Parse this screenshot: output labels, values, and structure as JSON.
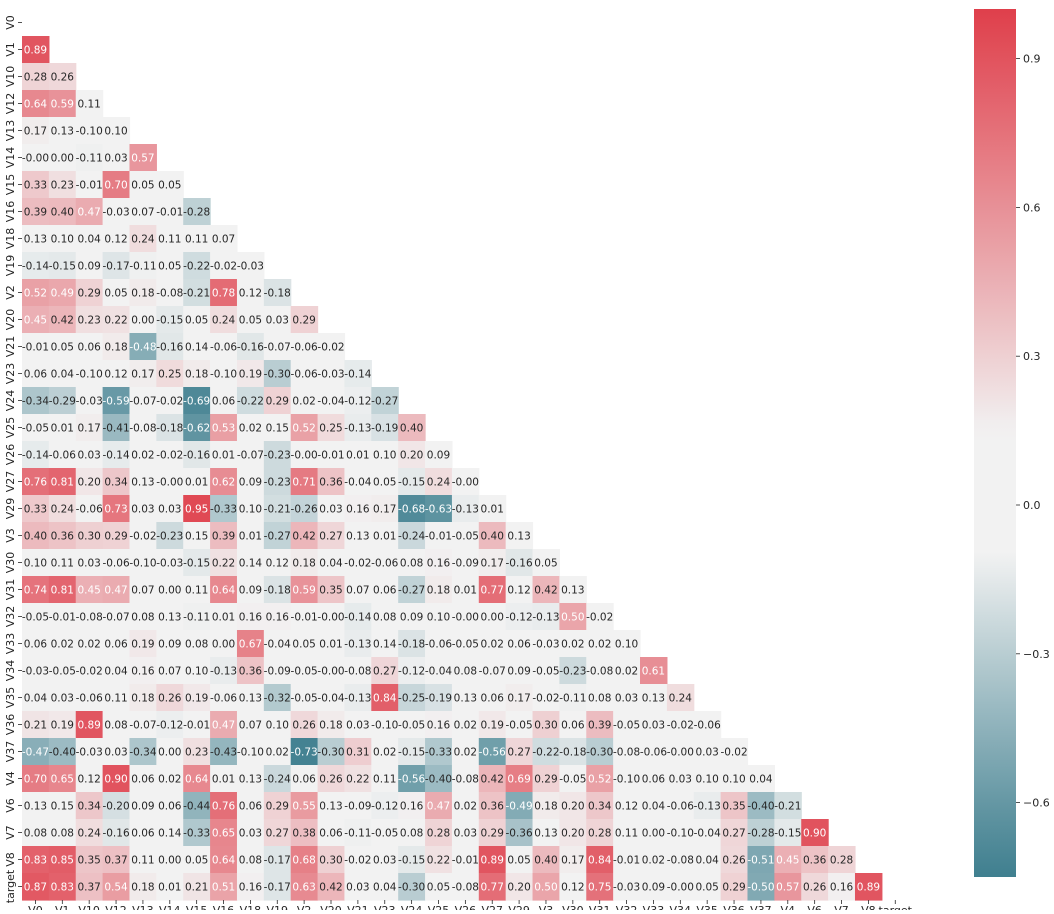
{
  "chart_data": {
    "type": "heatmap",
    "title": "",
    "xlabel": "",
    "ylabel": "",
    "labels": [
      "V0",
      "V1",
      "V10",
      "V12",
      "V13",
      "V14",
      "V15",
      "V16",
      "V18",
      "V19",
      "V2",
      "V20",
      "V21",
      "V23",
      "V24",
      "V25",
      "V26",
      "V27",
      "V29",
      "V3",
      "V30",
      "V31",
      "V32",
      "V33",
      "V34",
      "V35",
      "V36",
      "V37",
      "V4",
      "V6",
      "V7",
      "V8",
      "target"
    ],
    "rows": [
      [],
      [
        "0.89"
      ],
      [
        "0.28",
        "0.26"
      ],
      [
        "0.64",
        "0.59",
        "0.11"
      ],
      [
        "0.17",
        "0.13",
        "-0.10",
        "0.10"
      ],
      [
        "-0.00",
        "0.00",
        "-0.11",
        "0.03",
        "0.57"
      ],
      [
        "0.33",
        "0.23",
        "-0.01",
        "0.70",
        "0.05",
        "0.05"
      ],
      [
        "0.39",
        "0.40",
        "0.47",
        "-0.03",
        "0.07",
        "-0.01",
        "-0.28"
      ],
      [
        "0.13",
        "0.10",
        "0.04",
        "0.12",
        "0.24",
        "0.11",
        "0.11",
        "0.07"
      ],
      [
        "-0.14",
        "-0.15",
        "0.09",
        "-0.17",
        "-0.11",
        "0.05",
        "-0.22",
        "-0.02",
        "-0.03"
      ],
      [
        "0.52",
        "0.49",
        "0.29",
        "0.05",
        "0.18",
        "-0.08",
        "-0.21",
        "0.78",
        "0.12",
        "-0.18"
      ],
      [
        "0.45",
        "0.42",
        "0.23",
        "0.22",
        "0.00",
        "-0.15",
        "0.05",
        "0.24",
        "0.05",
        "0.03",
        "0.29"
      ],
      [
        "-0.01",
        "0.05",
        "0.06",
        "0.18",
        "-0.48",
        "-0.16",
        "0.14",
        "-0.06",
        "-0.16",
        "-0.07",
        "-0.06",
        "-0.02"
      ],
      [
        "0.06",
        "0.04",
        "-0.10",
        "0.12",
        "0.17",
        "0.25",
        "0.18",
        "-0.10",
        "0.19",
        "-0.30",
        "-0.06",
        "-0.03",
        "-0.14"
      ],
      [
        "-0.34",
        "-0.29",
        "-0.03",
        "-0.59",
        "-0.07",
        "-0.02",
        "-0.69",
        "0.06",
        "-0.22",
        "0.29",
        "0.02",
        "-0.04",
        "-0.12",
        "-0.27"
      ],
      [
        "-0.05",
        "0.01",
        "0.17",
        "-0.41",
        "-0.08",
        "-0.18",
        "-0.62",
        "0.53",
        "0.02",
        "0.15",
        "0.52",
        "0.25",
        "-0.13",
        "-0.19",
        "0.40"
      ],
      [
        "-0.14",
        "-0.06",
        "0.03",
        "-0.14",
        "0.02",
        "-0.02",
        "-0.16",
        "0.01",
        "-0.07",
        "-0.23",
        "-0.00",
        "-0.01",
        "0.01",
        "0.10",
        "0.20",
        "0.09"
      ],
      [
        "0.76",
        "0.81",
        "0.20",
        "0.34",
        "0.13",
        "-0.00",
        "0.01",
        "0.62",
        "0.09",
        "-0.23",
        "0.71",
        "0.36",
        "-0.04",
        "0.05",
        "-0.15",
        "0.24",
        "-0.00"
      ],
      [
        "0.33",
        "0.24",
        "-0.06",
        "0.73",
        "0.03",
        "0.03",
        "0.95",
        "-0.33",
        "0.10",
        "-0.21",
        "-0.26",
        "0.03",
        "0.16",
        "0.17",
        "-0.68",
        "-0.63",
        "-0.13",
        "0.01"
      ],
      [
        "0.40",
        "0.36",
        "0.30",
        "0.29",
        "-0.02",
        "-0.23",
        "0.15",
        "0.39",
        "0.01",
        "-0.27",
        "0.42",
        "0.27",
        "0.13",
        "0.01",
        "-0.24",
        "-0.01",
        "-0.05",
        "0.40",
        "0.13"
      ],
      [
        "0.10",
        "0.11",
        "0.03",
        "-0.06",
        "-0.10",
        "-0.03",
        "-0.15",
        "0.22",
        "0.14",
        "0.12",
        "0.18",
        "0.04",
        "-0.02",
        "-0.06",
        "0.08",
        "0.16",
        "-0.09",
        "0.17",
        "-0.16",
        "0.05"
      ],
      [
        "0.74",
        "0.81",
        "0.45",
        "0.47",
        "0.07",
        "0.00",
        "0.11",
        "0.64",
        "0.09",
        "-0.18",
        "0.59",
        "0.35",
        "0.07",
        "0.06",
        "-0.27",
        "0.18",
        "0.01",
        "0.77",
        "0.12",
        "0.42",
        "0.13"
      ],
      [
        "-0.05",
        "-0.01",
        "-0.08",
        "-0.07",
        "0.08",
        "0.13",
        "-0.11",
        "0.01",
        "0.16",
        "0.16",
        "-0.01",
        "-0.00",
        "-0.14",
        "0.08",
        "0.09",
        "0.10",
        "-0.00",
        "0.00",
        "-0.12",
        "-0.13",
        "0.50",
        "-0.02"
      ],
      [
        "0.06",
        "0.02",
        "0.02",
        "0.06",
        "0.19",
        "0.09",
        "0.08",
        "0.00",
        "0.67",
        "-0.04",
        "0.05",
        "0.01",
        "-0.13",
        "0.14",
        "-0.18",
        "-0.06",
        "-0.05",
        "0.02",
        "0.06",
        "-0.03",
        "0.02",
        "0.02",
        "0.10"
      ],
      [
        "-0.03",
        "-0.05",
        "-0.02",
        "0.04",
        "0.16",
        "0.07",
        "0.10",
        "-0.13",
        "0.36",
        "-0.09",
        "-0.05",
        "-0.00",
        "-0.08",
        "0.27",
        "-0.12",
        "-0.04",
        "0.08",
        "-0.07",
        "0.09",
        "-0.05",
        "-0.23",
        "-0.08",
        "0.02",
        "0.61"
      ],
      [
        "0.04",
        "0.03",
        "-0.06",
        "0.11",
        "0.18",
        "0.26",
        "0.19",
        "-0.06",
        "0.13",
        "-0.32",
        "-0.05",
        "-0.04",
        "-0.13",
        "0.84",
        "-0.25",
        "-0.19",
        "0.13",
        "0.06",
        "0.17",
        "-0.02",
        "-0.11",
        "0.08",
        "0.03",
        "0.13",
        "0.24"
      ],
      [
        "0.21",
        "0.19",
        "0.89",
        "0.08",
        "-0.07",
        "-0.12",
        "-0.01",
        "0.47",
        "0.07",
        "0.10",
        "0.26",
        "0.18",
        "0.03",
        "-0.10",
        "-0.05",
        "0.16",
        "0.02",
        "0.19",
        "-0.05",
        "0.30",
        "0.06",
        "0.39",
        "-0.05",
        "0.03",
        "-0.02",
        "-0.06"
      ],
      [
        "-0.47",
        "-0.40",
        "-0.03",
        "0.03",
        "-0.34",
        "0.00",
        "0.23",
        "-0.43",
        "-0.10",
        "0.02",
        "-0.73",
        "-0.30",
        "0.31",
        "0.02",
        "-0.15",
        "-0.33",
        "0.02",
        "-0.56",
        "0.27",
        "-0.22",
        "-0.18",
        "-0.30",
        "-0.08",
        "-0.06",
        "-0.00",
        "0.03",
        "-0.02"
      ],
      [
        "0.70",
        "0.65",
        "0.12",
        "0.90",
        "0.06",
        "0.02",
        "0.64",
        "0.01",
        "0.13",
        "-0.24",
        "0.06",
        "0.26",
        "0.22",
        "0.11",
        "-0.56",
        "-0.40",
        "-0.08",
        "0.42",
        "0.69",
        "0.29",
        "-0.05",
        "0.52",
        "-0.10",
        "0.06",
        "0.03",
        "0.10",
        "0.10",
        "0.04"
      ],
      [
        "0.13",
        "0.15",
        "0.34",
        "-0.20",
        "0.09",
        "0.06",
        "-0.44",
        "0.76",
        "0.06",
        "0.29",
        "0.55",
        "0.13",
        "-0.09",
        "-0.12",
        "0.16",
        "0.47",
        "0.02",
        "0.36",
        "-0.49",
        "0.18",
        "0.20",
        "0.34",
        "0.12",
        "0.04",
        "-0.06",
        "-0.13",
        "0.35",
        "-0.40",
        "-0.21"
      ],
      [
        "0.08",
        "0.08",
        "0.24",
        "-0.16",
        "0.06",
        "0.14",
        "-0.33",
        "0.65",
        "0.03",
        "0.27",
        "0.38",
        "0.06",
        "-0.11",
        "-0.05",
        "0.08",
        "0.28",
        "0.03",
        "0.29",
        "-0.36",
        "0.13",
        "0.20",
        "0.28",
        "0.11",
        "0.00",
        "-0.10",
        "-0.04",
        "0.27",
        "-0.28",
        "-0.15",
        "0.90"
      ],
      [
        "0.83",
        "0.85",
        "0.35",
        "0.37",
        "0.11",
        "0.00",
        "0.05",
        "0.64",
        "0.08",
        "-0.17",
        "0.68",
        "0.30",
        "-0.02",
        "0.03",
        "-0.15",
        "0.22",
        "-0.01",
        "0.89",
        "0.05",
        "0.40",
        "0.17",
        "0.84",
        "-0.01",
        "0.02",
        "-0.08",
        "0.04",
        "0.26",
        "-0.51",
        "0.45",
        "0.36",
        "0.28"
      ],
      [
        "0.87",
        "0.83",
        "0.37",
        "0.54",
        "0.18",
        "0.01",
        "0.21",
        "0.51",
        "0.16",
        "-0.17",
        "0.63",
        "0.42",
        "0.03",
        "0.04",
        "-0.30",
        "0.05",
        "-0.08",
        "0.77",
        "0.20",
        "0.50",
        "0.12",
        "0.75",
        "-0.03",
        "0.09",
        "-0.00",
        "0.05",
        "0.29",
        "-0.50",
        "0.57",
        "0.26",
        "0.16",
        "0.89"
      ]
    ],
    "colorbar": {
      "min": -0.75,
      "max": 1.0,
      "ticks": [
        "0.9",
        "0.6",
        "0.3",
        "0.0",
        "−0.3",
        "−0.6"
      ],
      "tick_values": [
        0.9,
        0.6,
        0.3,
        0.0,
        -0.3,
        -0.6
      ]
    },
    "colors": {
      "negative": "#3f7f8f",
      "neutral": "#f2f2f2",
      "positive": "#df3f4b",
      "text_dark": "#262626",
      "text_light": "#ffffff"
    },
    "grid": false
  }
}
